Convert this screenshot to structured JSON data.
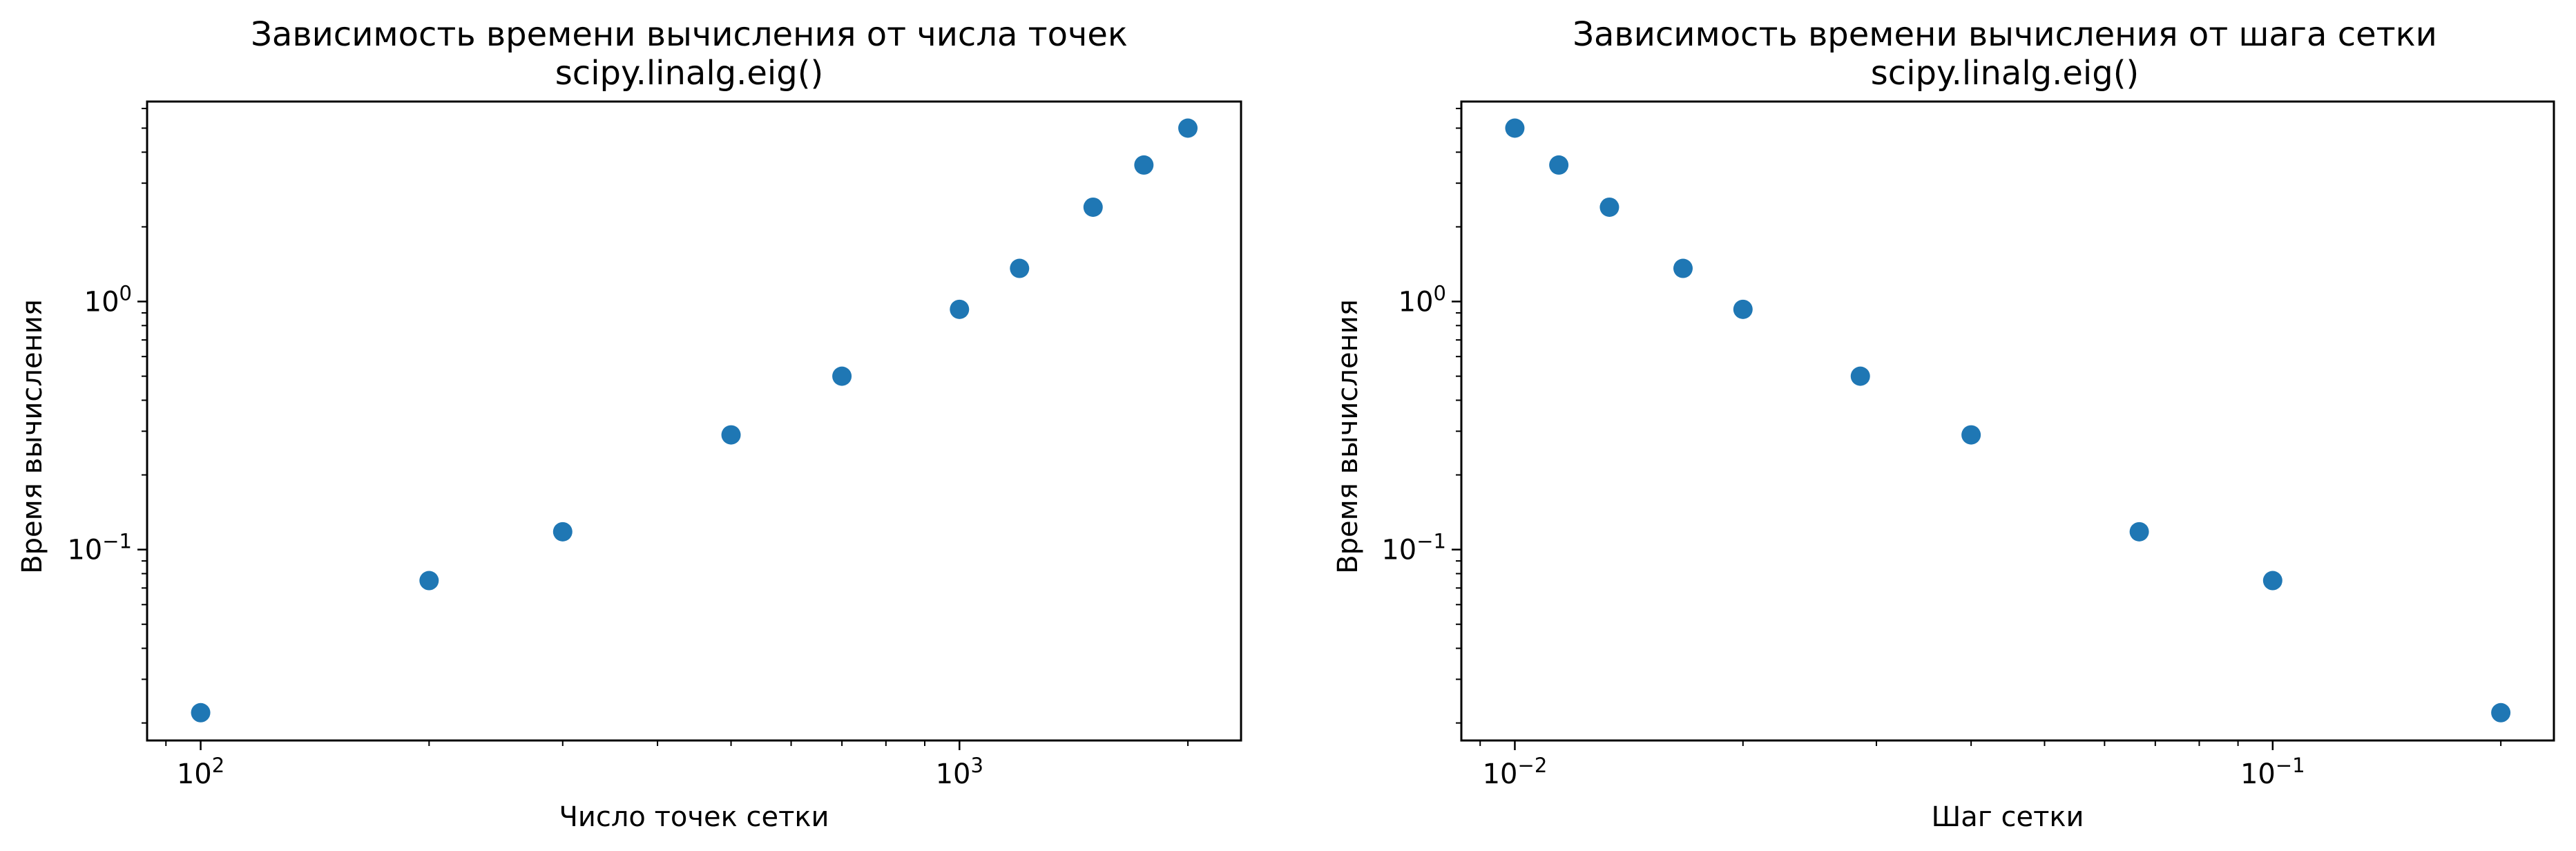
{
  "chart_data": [
    {
      "type": "scatter",
      "title": "Зависимость времени вычисления от числа точек",
      "subtitle": "scipy.linalg.eig()",
      "xlabel": "Число точек сетки",
      "ylabel": "Время вычисления",
      "xscale": "log",
      "yscale": "log",
      "xlim": [
        85,
        2350
      ],
      "ylim": [
        0.017,
        6.4
      ],
      "grid": false,
      "x_ticks": [
        {
          "base": "10",
          "exp": "2",
          "value": 100
        },
        {
          "base": "10",
          "exp": "3",
          "value": 1000
        }
      ],
      "y_ticks": [
        {
          "base": "10",
          "exp": "0",
          "value": 1
        },
        {
          "base": "10",
          "exp": "−1",
          "value": 0.1
        }
      ],
      "series": [
        {
          "color": "#1f77b4",
          "x": [
            100,
            200,
            300,
            500,
            700,
            1000,
            1200,
            1500,
            1750,
            2000
          ],
          "y": [
            0.022,
            0.075,
            0.118,
            0.29,
            0.5,
            0.93,
            1.36,
            2.4,
            3.55,
            5.0
          ]
        }
      ]
    },
    {
      "type": "scatter",
      "title": "Зависимость времени вычисления от шага сетки",
      "subtitle": "scipy.linalg.eig()",
      "xlabel": "Шаг сетки",
      "ylabel": "Время вычисления",
      "xscale": "log",
      "yscale": "log",
      "xlim": [
        0.0085,
        0.235
      ],
      "ylim": [
        0.017,
        6.4
      ],
      "grid": false,
      "x_ticks": [
        {
          "base": "10",
          "exp": "−2",
          "value": 0.01
        },
        {
          "base": "10",
          "exp": "−1",
          "value": 0.1
        }
      ],
      "y_ticks": [
        {
          "base": "10",
          "exp": "0",
          "value": 1
        },
        {
          "base": "10",
          "exp": "−1",
          "value": 0.1
        }
      ],
      "series": [
        {
          "color": "#1f77b4",
          "x": [
            0.01,
            0.01143,
            0.01333,
            0.01667,
            0.02,
            0.02857,
            0.04,
            0.06667,
            0.1,
            0.2
          ],
          "y": [
            5.0,
            3.55,
            2.4,
            1.36,
            0.93,
            0.5,
            0.29,
            0.118,
            0.075,
            0.022
          ]
        }
      ]
    }
  ]
}
